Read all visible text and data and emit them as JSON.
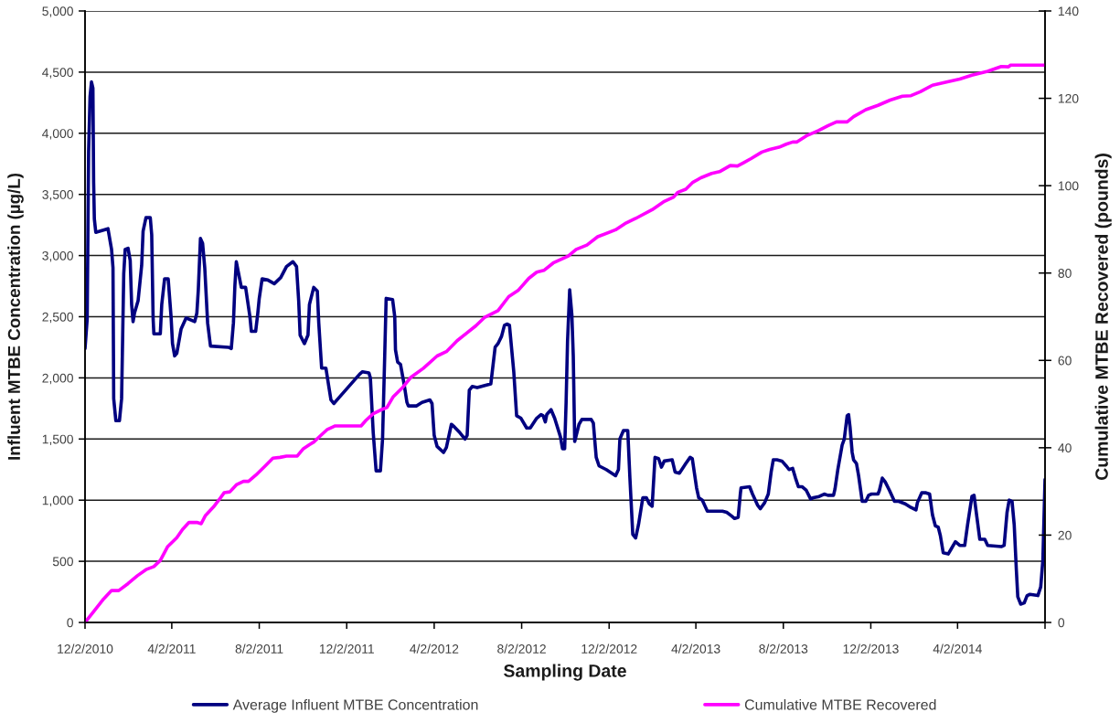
{
  "chart_data": {
    "type": "line",
    "xlabel": "Sampling Date",
    "ylabel": "Influent MTBE Concentration (µg/L)",
    "y2label": "Cumulative MTBE Recovered (pounds)",
    "xlim": [
      "2010-12-02",
      "2014-08-02"
    ],
    "xticks": [
      {
        "value": "2010-12-02",
        "label": "12/2/2010"
      },
      {
        "value": "2011-04-02",
        "label": "4/2/2011"
      },
      {
        "value": "2011-08-02",
        "label": "8/2/2011"
      },
      {
        "value": "2011-12-02",
        "label": "12/2/2011"
      },
      {
        "value": "2012-04-02",
        "label": "4/2/2012"
      },
      {
        "value": "2012-08-02",
        "label": "8/2/2012"
      },
      {
        "value": "2012-12-02",
        "label": "12/2/2012"
      },
      {
        "value": "2013-04-02",
        "label": "4/2/2013"
      },
      {
        "value": "2013-08-02",
        "label": "8/2/2013"
      },
      {
        "value": "2013-12-02",
        "label": "12/2/2013"
      },
      {
        "value": "2014-04-02",
        "label": "4/2/2014"
      },
      {
        "value": "2014-08-02",
        "label": null
      }
    ],
    "ylim": [
      0,
      5000
    ],
    "yticks": [
      0,
      500,
      {
        "value": 1000,
        "label": "1,000"
      },
      {
        "value": 1500,
        "label": "1,500"
      },
      {
        "value": 2000,
        "label": "2,000"
      },
      {
        "value": 2500,
        "label": "2,500"
      },
      {
        "value": 3000,
        "label": "3,000"
      },
      {
        "value": 3500,
        "label": "3,500"
      },
      {
        "value": 4000,
        "label": "4,000"
      },
      {
        "value": 4500,
        "label": "4,500"
      },
      {
        "value": 5000,
        "label": "5,000"
      }
    ],
    "y2lim": [
      0,
      140
    ],
    "y2ticks": [
      0,
      20,
      40,
      60,
      80,
      100,
      120,
      140
    ],
    "grid": "y",
    "legend": "bottom",
    "series": [
      {
        "name": "Average Influent MTBE Concentration",
        "color": "#000080",
        "x": [
          "2010-12-02",
          "2010-12-05",
          "2010-12-07",
          "2010-12-09",
          "2010-12-11",
          "2010-12-13",
          "2010-12-14",
          "2010-12-15",
          "2010-12-17",
          "2011-01-03",
          "2011-01-08",
          "2011-01-10",
          "2011-01-11",
          "2011-01-14",
          "2011-01-19",
          "2011-01-22",
          "2011-01-25",
          "2011-01-27",
          "2011-01-31",
          "2011-02-03",
          "2011-02-05",
          "2011-02-07",
          "2011-02-09",
          "2011-02-14",
          "2011-02-19",
          "2011-02-21",
          "2011-02-25",
          "2011-03-03",
          "2011-03-05",
          "2011-03-07",
          "2011-03-08",
          "2011-03-17",
          "2011-03-19",
          "2011-03-23",
          "2011-03-28",
          "2011-04-01",
          "2011-04-03",
          "2011-04-06",
          "2011-04-09",
          "2011-04-15",
          "2011-04-22",
          "2011-05-04",
          "2011-05-07",
          "2011-05-09",
          "2011-05-12",
          "2011-05-15",
          "2011-05-18",
          "2011-05-22",
          "2011-05-26",
          "2011-06-20",
          "2011-06-24",
          "2011-06-27",
          "2011-06-29",
          "2011-07-01",
          "2011-07-04",
          "2011-07-08",
          "2011-07-14",
          "2011-07-20",
          "2011-07-22",
          "2011-07-28",
          "2011-07-31",
          "2011-08-02",
          "2011-08-06",
          "2011-08-14",
          "2011-08-23",
          "2011-09-01",
          "2011-09-09",
          "2011-09-18",
          "2011-09-23",
          "2011-09-26",
          "2011-09-28",
          "2011-10-04",
          "2011-10-09",
          "2011-10-11",
          "2011-10-17",
          "2011-10-22",
          "2011-10-24",
          "2011-10-28",
          "2011-11-03",
          "2011-11-07",
          "2011-11-10",
          "2011-11-14",
          "2011-11-20",
          "2011-12-20",
          "2011-12-24",
          "2012-01-02",
          "2012-01-04",
          "2012-01-08",
          "2012-01-12",
          "2012-01-18",
          "2012-01-21",
          "2012-01-24",
          "2012-01-26",
          "2012-02-04",
          "2012-02-07",
          "2012-02-08",
          "2012-02-11",
          "2012-02-15",
          "2012-02-20",
          "2012-02-24",
          "2012-02-26",
          "2012-03-08",
          "2012-03-16",
          "2012-03-27",
          "2012-03-30",
          "2012-04-02",
          "2012-04-06",
          "2012-04-15",
          "2012-04-19",
          "2012-04-26",
          "2012-04-30",
          "2012-05-08",
          "2012-05-15",
          "2012-05-18",
          "2012-05-21",
          "2012-05-25",
          "2012-06-01",
          "2012-06-20",
          "2012-06-22",
          "2012-06-26",
          "2012-06-30",
          "2012-07-05",
          "2012-07-09",
          "2012-07-13",
          "2012-07-16",
          "2012-07-22",
          "2012-07-26",
          "2012-08-01",
          "2012-08-09",
          "2012-08-14",
          "2012-08-23",
          "2012-08-29",
          "2012-09-01",
          "2012-09-04",
          "2012-09-06",
          "2012-09-12",
          "2012-09-17",
          "2012-09-25",
          "2012-09-28",
          "2012-10-01",
          "2012-10-03",
          "2012-10-05",
          "2012-10-08",
          "2012-10-11",
          "2012-10-13",
          "2012-10-15",
          "2012-10-21",
          "2012-10-25",
          "2012-11-07",
          "2012-11-10",
          "2012-11-14",
          "2012-11-18",
          "2012-11-28",
          "2012-12-11",
          "2012-12-15",
          "2012-12-17",
          "2012-12-22",
          "2012-12-28",
          "2012-12-31",
          "2013-01-04",
          "2013-01-08",
          "2013-01-12",
          "2013-01-18",
          "2013-01-23",
          "2013-01-27",
          "2013-01-31",
          "2013-02-04",
          "2013-02-09",
          "2013-02-13",
          "2013-02-17",
          "2013-02-28",
          "2013-03-04",
          "2013-03-10",
          "2013-03-19",
          "2013-03-25",
          "2013-03-28",
          "2013-04-03",
          "2013-04-06",
          "2013-04-11",
          "2013-04-18",
          "2013-05-09",
          "2013-05-15",
          "2013-05-22",
          "2013-05-26",
          "2013-05-31",
          "2013-06-03",
          "2013-06-04",
          "2013-06-16",
          "2013-06-20",
          "2013-06-27",
          "2013-07-01",
          "2013-07-07",
          "2013-07-12",
          "2013-07-16",
          "2013-07-19",
          "2013-07-24",
          "2013-07-31",
          "2013-08-06",
          "2013-08-10",
          "2013-08-15",
          "2013-08-19",
          "2013-08-23",
          "2013-08-28",
          "2013-09-03",
          "2013-09-09",
          "2013-09-13",
          "2013-09-21",
          "2013-09-28",
          "2013-10-03",
          "2013-10-11",
          "2013-10-13",
          "2013-10-17",
          "2013-10-23",
          "2013-10-26",
          "2013-10-30",
          "2013-11-01",
          "2013-11-03",
          "2013-11-06",
          "2013-11-08",
          "2013-11-12",
          "2013-11-15",
          "2013-11-20",
          "2013-11-25",
          "2013-11-29",
          "2013-12-03",
          "2013-12-12",
          "2013-12-14",
          "2013-12-18",
          "2013-12-22",
          "2013-12-28",
          "2014-01-04",
          "2014-01-10",
          "2014-01-19",
          "2014-01-27",
          "2014-02-03",
          "2014-02-05",
          "2014-02-11",
          "2014-02-17",
          "2014-02-22",
          "2014-02-26",
          "2014-03-02",
          "2014-03-06",
          "2014-03-09",
          "2014-03-13",
          "2014-03-20",
          "2014-03-24",
          "2014-03-30",
          "2014-04-05",
          "2014-04-12",
          "2014-04-16",
          "2014-04-22",
          "2014-04-25",
          "2014-04-29",
          "2014-05-03",
          "2014-05-10",
          "2014-05-14",
          "2014-06-02",
          "2014-06-06",
          "2014-06-10",
          "2014-06-13",
          "2014-06-17",
          "2014-06-20",
          "2014-06-23",
          "2014-06-25",
          "2014-06-29",
          "2014-07-04",
          "2014-07-08",
          "2014-07-12",
          "2014-07-23",
          "2014-07-27",
          "2014-07-30",
          "2014-08-02"
        ],
        "values": [
          2240,
          2480,
          3850,
          4300,
          4420,
          4370,
          3600,
          3300,
          3190,
          3220,
          3050,
          2900,
          1830,
          1650,
          1650,
          1830,
          2850,
          3050,
          3060,
          2960,
          2600,
          2460,
          2530,
          2630,
          2920,
          3200,
          3310,
          3310,
          3170,
          2480,
          2360,
          2360,
          2600,
          2810,
          2810,
          2500,
          2280,
          2180,
          2200,
          2400,
          2490,
          2460,
          2530,
          2720,
          3140,
          3100,
          2900,
          2450,
          2260,
          2250,
          2240,
          2450,
          2750,
          2950,
          2860,
          2740,
          2740,
          2500,
          2380,
          2380,
          2530,
          2650,
          2810,
          2800,
          2770,
          2820,
          2910,
          2950,
          2910,
          2630,
          2350,
          2280,
          2350,
          2600,
          2740,
          2710,
          2450,
          2080,
          2080,
          1930,
          1820,
          1790,
          1830,
          2030,
          2050,
          2040,
          2000,
          1550,
          1240,
          1240,
          1500,
          2180,
          2650,
          2640,
          2500,
          2230,
          2130,
          2110,
          1950,
          1800,
          1770,
          1770,
          1800,
          1820,
          1790,
          1530,
          1440,
          1390,
          1430,
          1620,
          1600,
          1550,
          1500,
          1530,
          1900,
          1930,
          1920,
          1950,
          2050,
          2250,
          2280,
          2340,
          2430,
          2440,
          2430,
          2050,
          1690,
          1670,
          1590,
          1590,
          1670,
          1700,
          1690,
          1640,
          1700,
          1740,
          1670,
          1520,
          1420,
          1420,
          1800,
          2300,
          2720,
          2520,
          2180,
          1480,
          1620,
          1660,
          1660,
          1630,
          1350,
          1280,
          1250,
          1200,
          1250,
          1500,
          1570,
          1570,
          1180,
          720,
          690,
          800,
          1020,
          1020,
          970,
          950,
          1350,
          1340,
          1270,
          1320,
          1330,
          1230,
          1220,
          1300,
          1350,
          1340,
          1100,
          1020,
          1000,
          910,
          910,
          900,
          870,
          850,
          860,
          1050,
          1100,
          1110,
          1050,
          960,
          930,
          980,
          1050,
          1230,
          1330,
          1330,
          1320,
          1280,
          1250,
          1260,
          1180,
          1110,
          1110,
          1080,
          1010,
          1020,
          1030,
          1050,
          1040,
          1040,
          1090,
          1250,
          1450,
          1500,
          1690,
          1700,
          1600,
          1390,
          1330,
          1300,
          1200,
          990,
          990,
          1040,
          1050,
          1050,
          1080,
          1180,
          1150,
          1080,
          990,
          990,
          970,
          940,
          920,
          980,
          1060,
          1060,
          1050,
          880,
          790,
          780,
          710,
          570,
          560,
          600,
          660,
          630,
          630,
          800,
          1030,
          1040,
          860,
          680,
          680,
          630,
          620,
          630,
          900,
          1000,
          990,
          800,
          430,
          210,
          150,
          160,
          220,
          230,
          220,
          290,
          510,
          1170
        ]
      },
      {
        "name": "Cumulative MTBE Recovered",
        "color": "#ff00ff",
        "axis": "y2",
        "x": [
          "2010-12-02",
          "2010-12-15",
          "2010-12-28",
          "2011-01-08",
          "2011-01-18",
          "2011-01-31",
          "2011-02-13",
          "2011-02-25",
          "2011-03-08",
          "2011-03-17",
          "2011-03-27",
          "2011-04-09",
          "2011-04-17",
          "2011-04-26",
          "2011-05-07",
          "2011-05-13",
          "2011-05-19",
          "2011-05-30",
          "2011-06-07",
          "2011-06-14",
          "2011-06-22",
          "2011-07-01",
          "2011-07-11",
          "2011-07-18",
          "2011-07-28",
          "2011-08-10",
          "2011-08-21",
          "2011-08-31",
          "2011-09-09",
          "2011-09-24",
          "2011-10-02",
          "2011-10-11",
          "2011-10-17",
          "2011-10-26",
          "2011-11-05",
          "2011-11-16",
          "2011-12-22",
          "2011-12-29",
          "2012-01-08",
          "2012-01-19",
          "2012-01-27",
          "2012-02-05",
          "2012-02-18",
          "2012-03-01",
          "2012-03-18",
          "2012-04-06",
          "2012-04-19",
          "2012-05-04",
          "2012-05-17",
          "2012-05-30",
          "2012-06-11",
          "2012-06-30",
          "2012-07-15",
          "2012-07-28",
          "2012-08-12",
          "2012-08-23",
          "2012-09-02",
          "2012-09-15",
          "2012-10-06",
          "2012-10-17",
          "2012-11-01",
          "2012-11-16",
          "2012-12-11",
          "2012-12-24",
          "2013-01-08",
          "2013-01-31",
          "2013-02-17",
          "2013-03-02",
          "2013-03-08",
          "2013-03-19",
          "2013-03-29",
          "2013-04-09",
          "2013-04-24",
          "2013-05-05",
          "2013-05-20",
          "2013-05-30",
          "2013-06-08",
          "2013-06-18",
          "2013-07-03",
          "2013-07-14",
          "2013-07-27",
          "2013-08-06",
          "2013-08-15",
          "2013-08-21",
          "2013-09-03",
          "2013-09-20",
          "2013-10-03",
          "2013-10-15",
          "2013-10-30",
          "2013-11-08",
          "2013-11-25",
          "2013-12-12",
          "2013-12-29",
          "2014-01-15",
          "2014-01-27",
          "2014-02-09",
          "2014-02-26",
          "2014-03-19",
          "2014-04-05",
          "2014-04-22",
          "2014-05-14",
          "2014-06-02",
          "2014-06-12",
          "2014-06-15",
          "2014-08-02"
        ],
        "values": [
          0,
          2.7,
          5.4,
          7.3,
          7.3,
          8.9,
          10.7,
          12.1,
          12.8,
          14.2,
          17.3,
          19.4,
          21.3,
          22.9,
          22.9,
          22.6,
          24.5,
          26.4,
          28.1,
          29.7,
          29.9,
          31.5,
          32.3,
          32.3,
          33.7,
          35.8,
          37.6,
          37.8,
          38.1,
          38.1,
          39.7,
          40.7,
          41.3,
          42.7,
          44.2,
          45.0,
          45.0,
          46.3,
          47.8,
          48.7,
          49.2,
          51.7,
          53.8,
          56.2,
          58.2,
          61.0,
          62.0,
          64.5,
          66.2,
          67.9,
          69.8,
          71.4,
          74.6,
          76.0,
          78.8,
          80.2,
          80.6,
          82.3,
          83.9,
          85.4,
          86.4,
          88.3,
          89.9,
          91.3,
          92.5,
          94.5,
          96.4,
          97.4,
          98.5,
          99.2,
          100.8,
          101.8,
          102.8,
          103.2,
          104.6,
          104.5,
          105.3,
          106.2,
          107.7,
          108.3,
          108.8,
          109.5,
          110.0,
          110.0,
          111.4,
          112.6,
          113.7,
          114.6,
          114.6,
          115.8,
          117.4,
          118.4,
          119.6,
          120.5,
          120.6,
          121.5,
          123.0,
          123.8,
          124.4,
          125.3,
          126.2,
          127.3,
          127.2,
          127.6,
          127.6
        ]
      }
    ]
  }
}
